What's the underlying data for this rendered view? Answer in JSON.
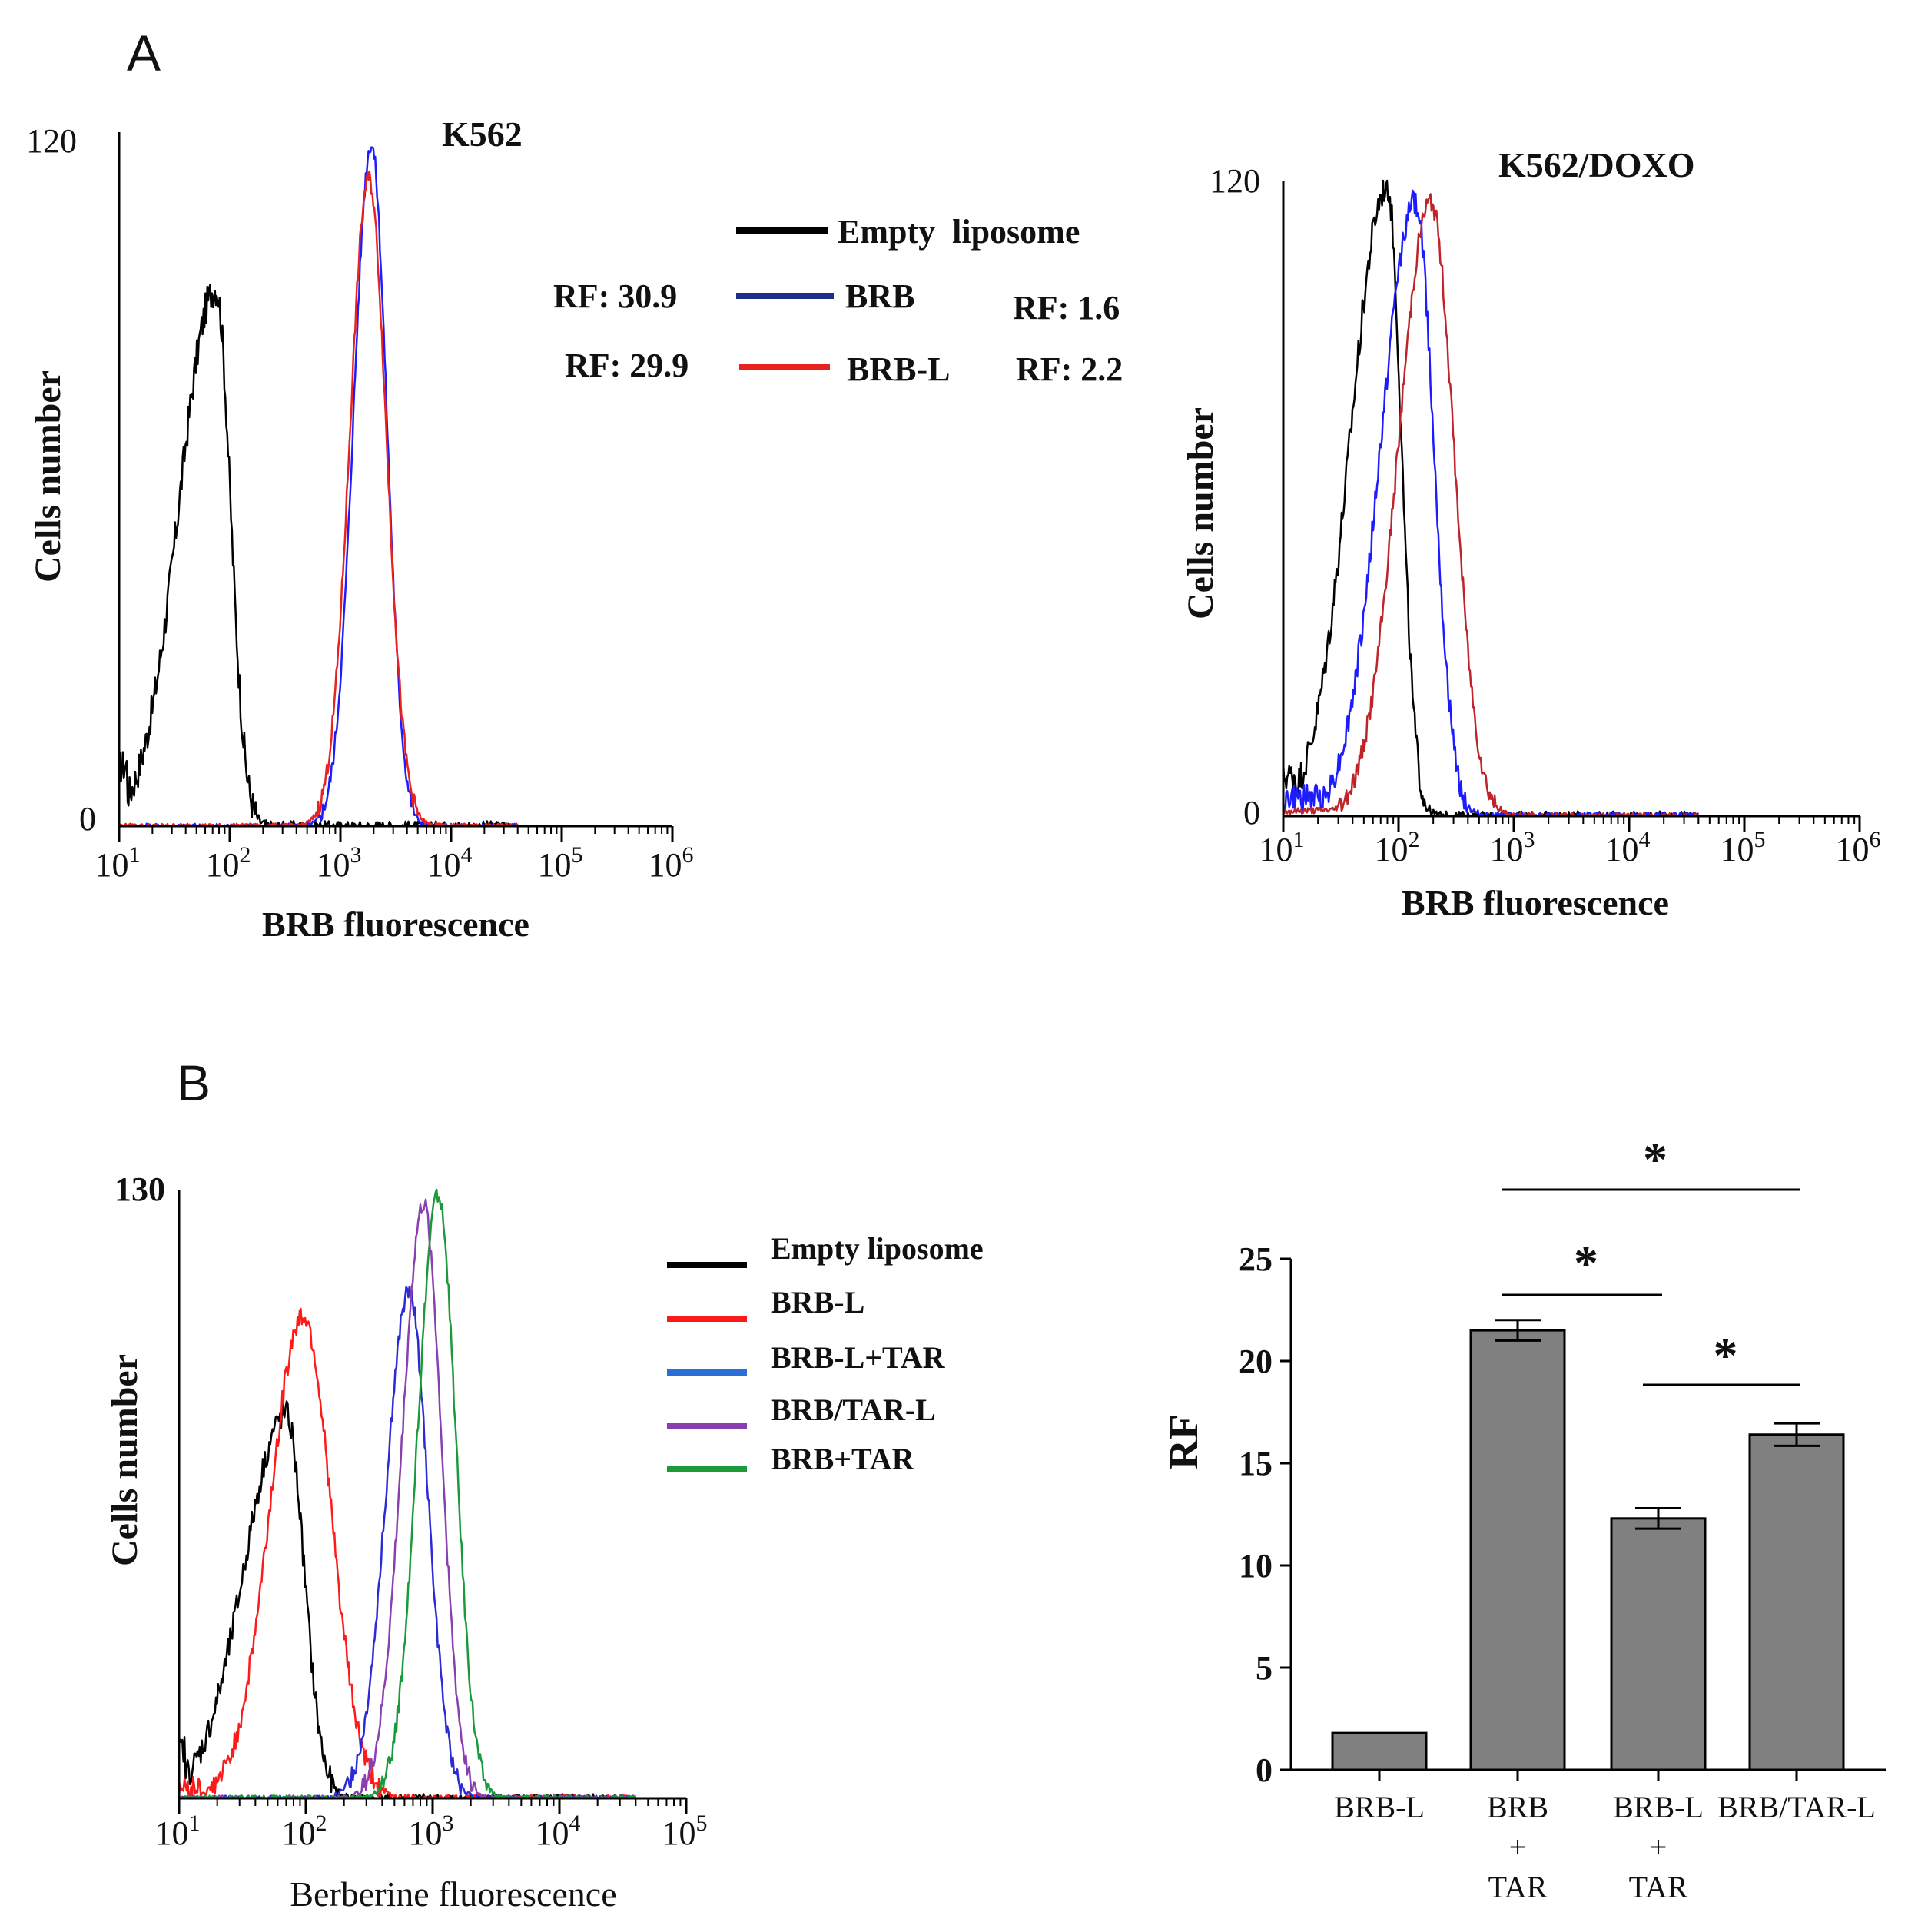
{
  "panel_labels": {
    "a": "A",
    "b": "B"
  },
  "chart_data": [
    {
      "id": "k562",
      "type": "line",
      "title": "K562",
      "xlabel": "BRB fluorescence",
      "ylabel": "Cells number",
      "xscale": "log",
      "xlim": [
        10,
        1000000
      ],
      "ylim": [
        0,
        120
      ],
      "x_ticks": [
        1,
        2,
        3,
        4,
        5,
        6
      ],
      "y_tick_labels": [
        "0",
        "120"
      ],
      "legend": [
        {
          "label": "Empty  liposome",
          "color": "#000000"
        },
        {
          "label": "BRB",
          "color": "#1b2f87"
        },
        {
          "label": "BRB-L",
          "color": "#e8221e"
        }
      ],
      "annotations": {
        "rf_k562": [
          "RF: 30.9",
          "RF: 29.9"
        ],
        "rf_k562_doxo": [
          "RF: 1.6",
          "RF: 2.2"
        ]
      },
      "series": [
        {
          "name": "Empty liposome",
          "color": "#000000",
          "peak_x": 75,
          "peak_y": 93,
          "left_sigma_dec": 0.33,
          "right_sigma_dec": 0.13,
          "floor": 8,
          "noise": 3
        },
        {
          "name": "BRB",
          "color": "#1c1cff",
          "peak_x": 1900,
          "peak_y": 118,
          "left_sigma_dec": 0.16,
          "right_sigma_dec": 0.14,
          "floor": 0,
          "noise": 1.5
        },
        {
          "name": "BRB-L",
          "color": "#e8221e",
          "peak_x": 1800,
          "peak_y": 112,
          "left_sigma_dec": 0.17,
          "right_sigma_dec": 0.16,
          "floor": 0,
          "noise": 1.5
        }
      ]
    },
    {
      "id": "k562doxo",
      "type": "line",
      "title": "K562/DOXO",
      "xlabel": "BRB fluorescence",
      "ylabel": "Cells number",
      "xscale": "log",
      "xlim": [
        10,
        1000000
      ],
      "ylim": [
        0,
        120
      ],
      "x_ticks": [
        1,
        2,
        3,
        4,
        5,
        6
      ],
      "y_tick_labels": [
        "0",
        "120"
      ],
      "series": [
        {
          "name": "Empty liposome",
          "color": "#000000",
          "peak_x": 80,
          "peak_y": 119,
          "left_sigma_dec": 0.32,
          "right_sigma_dec": 0.12,
          "floor": 6,
          "noise": 3
        },
        {
          "name": "BRB",
          "color": "#1c1cff",
          "peak_x": 140,
          "peak_y": 116,
          "left_sigma_dec": 0.3,
          "right_sigma_dec": 0.16,
          "floor": 3,
          "noise": 2.5
        },
        {
          "name": "BRB-L",
          "color": "#c0242b",
          "peak_x": 190,
          "peak_y": 116,
          "left_sigma_dec": 0.28,
          "right_sigma_dec": 0.2,
          "floor": 1,
          "noise": 2
        }
      ]
    },
    {
      "id": "berberine",
      "type": "line",
      "xlabel": "Berberine fluorescence",
      "ylabel": "Cells number",
      "xscale": "log",
      "xlim": [
        10,
        100000
      ],
      "ylim": [
        0,
        130
      ],
      "x_ticks": [
        1,
        2,
        3,
        4,
        5
      ],
      "y_tick_labels": [
        "130"
      ],
      "legend": [
        {
          "label": "Empty liposome",
          "color": "#000000"
        },
        {
          "label": "BRB-L",
          "color": "#ff1a1a"
        },
        {
          "label": "BRB-L+TAR",
          "color": "#2a6fd6"
        },
        {
          "label": "BRB/TAR-L",
          "color": "#8a3fb0"
        },
        {
          "label": "BRB+TAR",
          "color": "#1a9a3a"
        }
      ],
      "series": [
        {
          "name": "Empty liposome",
          "color": "#000000",
          "peak_x": 70,
          "peak_y": 82,
          "left_sigma_dec": 0.33,
          "right_sigma_dec": 0.14,
          "floor": 8,
          "noise": 3
        },
        {
          "name": "BRB-L",
          "color": "#ff1a1a",
          "peak_x": 95,
          "peak_y": 103,
          "left_sigma_dec": 0.26,
          "right_sigma_dec": 0.22,
          "floor": 2,
          "noise": 2.5
        },
        {
          "name": "BRB-L+TAR",
          "color": "#2a2ad6",
          "peak_x": 650,
          "peak_y": 108,
          "left_sigma_dec": 0.18,
          "right_sigma_dec": 0.15,
          "floor": 0,
          "noise": 2
        },
        {
          "name": "BRB/TAR-L",
          "color": "#8a3fb0",
          "peak_x": 850,
          "peak_y": 127,
          "left_sigma_dec": 0.17,
          "right_sigma_dec": 0.14,
          "floor": 0,
          "noise": 2
        },
        {
          "name": "BRB+TAR",
          "color": "#1a9a3a",
          "peak_x": 1100,
          "peak_y": 129,
          "left_sigma_dec": 0.16,
          "right_sigma_dec": 0.14,
          "floor": 0,
          "noise": 2
        }
      ]
    },
    {
      "id": "rfbar",
      "type": "bar",
      "ylabel": "RF",
      "ylim": [
        0,
        25
      ],
      "y_ticks": [
        0,
        5,
        10,
        15,
        20,
        25
      ],
      "categories": [
        [
          "BRB-L"
        ],
        [
          "BRB",
          "+",
          "TAR"
        ],
        [
          "BRB-L",
          "+",
          "TAR"
        ],
        [
          "BRB/TAR-L"
        ]
      ],
      "values": [
        1.8,
        21.5,
        12.3,
        16.4
      ],
      "errors": [
        0.05,
        0.5,
        0.5,
        0.55
      ],
      "bar_color": "#808080",
      "significance": [
        {
          "from": 1,
          "to": 3,
          "label": "*"
        },
        {
          "from": 1,
          "to": 2,
          "label": "*"
        },
        {
          "from": 2,
          "to": 3,
          "label": "*"
        }
      ]
    }
  ]
}
